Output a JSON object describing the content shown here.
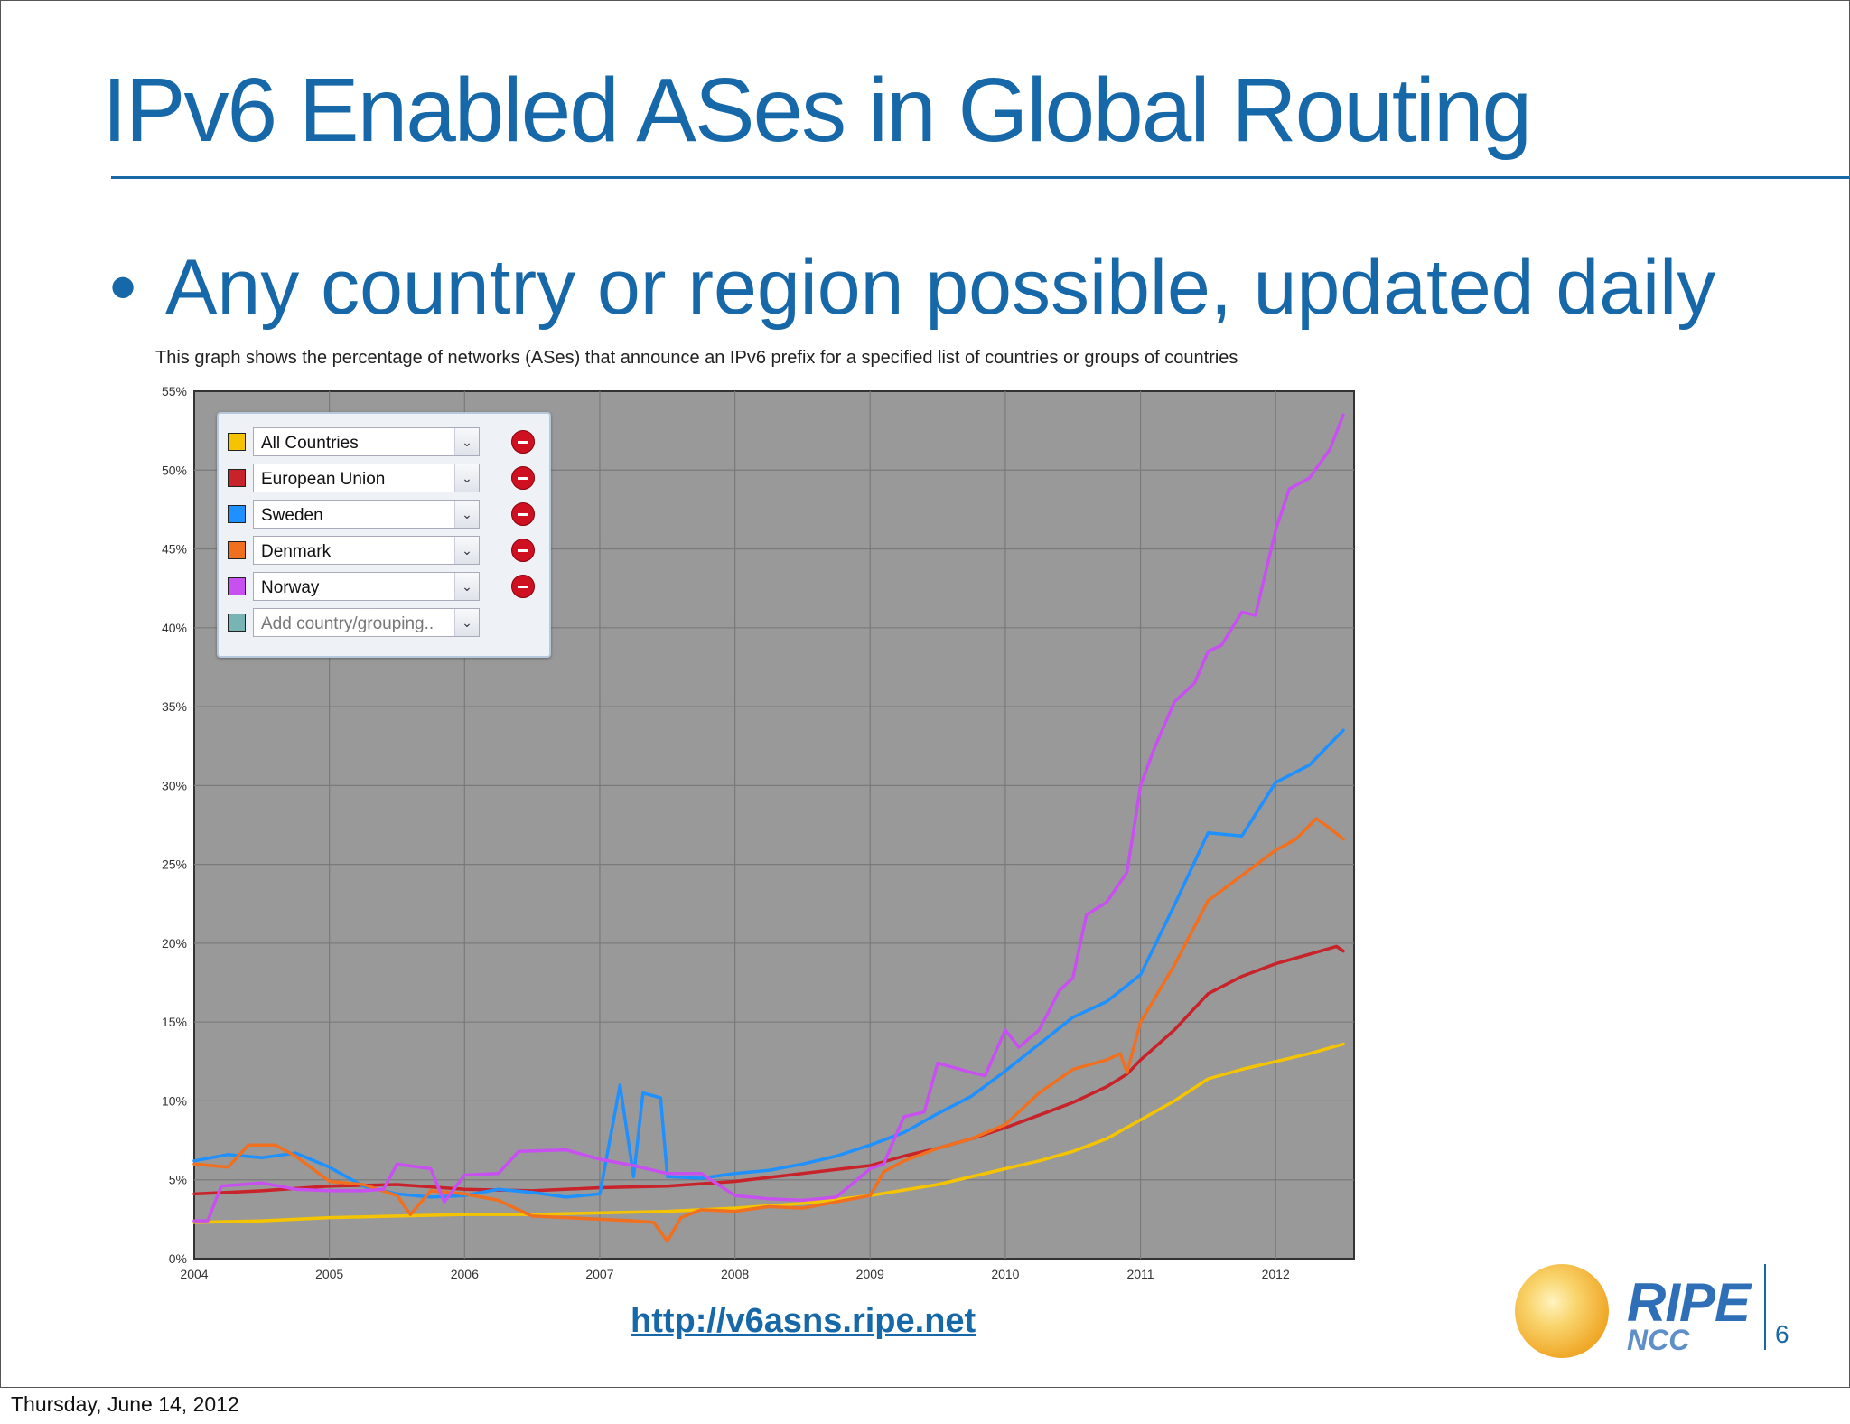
{
  "slide": {
    "title": "IPv6 Enabled ASes in Global Routing",
    "bullet": "Any country or region possible, updated daily",
    "link": "http://v6asns.ripe.net",
    "page_number": "6",
    "logo_text": "RIPE",
    "logo_subtext": "NCC"
  },
  "footer": {
    "date": "Thursday, June 14, 2012"
  },
  "chart_data": {
    "type": "line",
    "title": "This graph shows the percentage of networks (ASes) that announce an IPv6 prefix for a specified list of countries or groups of countries",
    "xlabel": "",
    "ylabel": "",
    "xlim": [
      2004,
      2012.58
    ],
    "ylim": [
      0,
      55
    ],
    "x_ticks": [
      "2004",
      "2005",
      "2006",
      "2007",
      "2008",
      "2009",
      "2010",
      "2011",
      "2012"
    ],
    "y_ticks": [
      "0%",
      "5%",
      "10%",
      "15%",
      "20%",
      "25%",
      "30%",
      "35%",
      "40%",
      "45%",
      "50%",
      "55%"
    ],
    "grid": true,
    "legend": "top-left",
    "legend_add_placeholder": "Add country/grouping..",
    "legend_add_color": "#78b4b4",
    "background": "#999999",
    "series": [
      {
        "name": "All Countries",
        "color": "#f5c400",
        "x": [
          2004.0,
          2004.5,
          2005.0,
          2005.5,
          2006.0,
          2006.5,
          2007.0,
          2007.5,
          2008.0,
          2008.5,
          2009.0,
          2009.5,
          2010.0,
          2010.25,
          2010.5,
          2010.75,
          2011.0,
          2011.25,
          2011.5,
          2011.75,
          2012.0,
          2012.25,
          2012.5
        ],
        "y": [
          2.3,
          2.4,
          2.6,
          2.7,
          2.8,
          2.8,
          2.9,
          3.0,
          3.2,
          3.5,
          4.0,
          4.7,
          5.7,
          6.2,
          6.8,
          7.6,
          8.8,
          10.0,
          11.4,
          12.0,
          12.5,
          13.0,
          13.6
        ]
      },
      {
        "name": "European Union",
        "color": "#c8222a",
        "x": [
          2004.0,
          2004.5,
          2005.0,
          2005.5,
          2006.0,
          2006.5,
          2007.0,
          2007.5,
          2008.0,
          2008.5,
          2009.0,
          2009.25,
          2009.5,
          2009.75,
          2010.0,
          2010.25,
          2010.5,
          2010.75,
          2010.9,
          2011.0,
          2011.25,
          2011.5,
          2011.75,
          2012.0,
          2012.25,
          2012.45,
          2012.5
        ],
        "y": [
          4.1,
          4.3,
          4.6,
          4.7,
          4.4,
          4.3,
          4.5,
          4.6,
          4.9,
          5.4,
          5.9,
          6.5,
          7.0,
          7.6,
          8.3,
          9.1,
          9.9,
          10.9,
          11.7,
          12.6,
          14.5,
          16.8,
          17.9,
          18.7,
          19.3,
          19.8,
          19.5
        ]
      },
      {
        "name": "Sweden",
        "color": "#1e90ff",
        "x": [
          2004.0,
          2004.25,
          2004.5,
          2004.75,
          2005.0,
          2005.25,
          2005.5,
          2005.75,
          2006.0,
          2006.25,
          2006.5,
          2006.75,
          2007.0,
          2007.15,
          2007.25,
          2007.32,
          2007.45,
          2007.5,
          2007.75,
          2008.0,
          2008.25,
          2008.5,
          2008.75,
          2009.0,
          2009.25,
          2009.5,
          2009.75,
          2010.0,
          2010.25,
          2010.5,
          2010.75,
          2011.0,
          2011.25,
          2011.5,
          2011.75,
          2012.0,
          2012.25,
          2012.5
        ],
        "y": [
          6.2,
          6.6,
          6.4,
          6.7,
          5.8,
          4.6,
          4.1,
          3.9,
          4.0,
          4.4,
          4.2,
          3.9,
          4.1,
          11.0,
          5.2,
          10.5,
          10.2,
          5.2,
          5.1,
          5.4,
          5.6,
          6.0,
          6.5,
          7.2,
          8.0,
          9.2,
          10.3,
          11.9,
          13.6,
          15.3,
          16.3,
          18.0,
          22.4,
          27.0,
          26.8,
          30.2,
          31.3,
          33.5
        ]
      },
      {
        "name": "Denmark",
        "color": "#f07020",
        "x": [
          2004.0,
          2004.25,
          2004.4,
          2004.6,
          2004.75,
          2005.0,
          2005.25,
          2005.5,
          2005.6,
          2005.75,
          2006.0,
          2006.25,
          2006.5,
          2006.75,
          2007.0,
          2007.25,
          2007.4,
          2007.5,
          2007.6,
          2007.75,
          2008.0,
          2008.25,
          2008.5,
          2008.75,
          2009.0,
          2009.1,
          2009.25,
          2009.5,
          2009.75,
          2010.0,
          2010.25,
          2010.5,
          2010.75,
          2010.85,
          2010.9,
          2011.0,
          2011.25,
          2011.5,
          2011.75,
          2012.0,
          2012.15,
          2012.3,
          2012.4,
          2012.5
        ],
        "y": [
          6.0,
          5.8,
          7.2,
          7.2,
          6.5,
          4.9,
          4.7,
          4.0,
          2.8,
          4.3,
          4.1,
          3.7,
          2.7,
          2.6,
          2.5,
          2.4,
          2.3,
          1.1,
          2.6,
          3.1,
          3.0,
          3.3,
          3.2,
          3.6,
          4.0,
          5.5,
          6.2,
          7.0,
          7.6,
          8.5,
          10.5,
          12.0,
          12.6,
          13.0,
          11.8,
          15.0,
          18.6,
          22.7,
          24.3,
          25.9,
          26.6,
          27.9,
          27.3,
          26.6
        ]
      },
      {
        "name": "Norway",
        "color": "#c850f0",
        "x": [
          2004.0,
          2004.1,
          2004.2,
          2004.5,
          2004.75,
          2005.0,
          2005.25,
          2005.4,
          2005.5,
          2005.75,
          2005.85,
          2006.0,
          2006.25,
          2006.4,
          2006.75,
          2007.0,
          2007.25,
          2007.4,
          2007.5,
          2007.75,
          2008.0,
          2008.25,
          2008.5,
          2008.75,
          2009.0,
          2009.1,
          2009.25,
          2009.4,
          2009.5,
          2009.75,
          2009.85,
          2010.0,
          2010.1,
          2010.25,
          2010.4,
          2010.5,
          2010.6,
          2010.75,
          2010.9,
          2011.0,
          2011.1,
          2011.25,
          2011.4,
          2011.5,
          2011.6,
          2011.75,
          2011.85,
          2012.0,
          2012.1,
          2012.25,
          2012.4,
          2012.5
        ],
        "y": [
          2.4,
          2.4,
          4.6,
          4.8,
          4.4,
          4.3,
          4.3,
          4.4,
          6.0,
          5.7,
          3.6,
          5.3,
          5.4,
          6.8,
          6.9,
          6.3,
          5.9,
          5.6,
          5.4,
          5.4,
          4.0,
          3.8,
          3.7,
          3.9,
          5.7,
          6.0,
          9.0,
          9.3,
          12.4,
          11.8,
          11.6,
          14.5,
          13.4,
          14.5,
          17.0,
          17.8,
          21.8,
          22.6,
          24.5,
          30.0,
          32.3,
          35.3,
          36.5,
          38.5,
          38.9,
          41.0,
          40.8,
          46.2,
          48.8,
          49.5,
          51.3,
          53.5
        ]
      }
    ]
  }
}
